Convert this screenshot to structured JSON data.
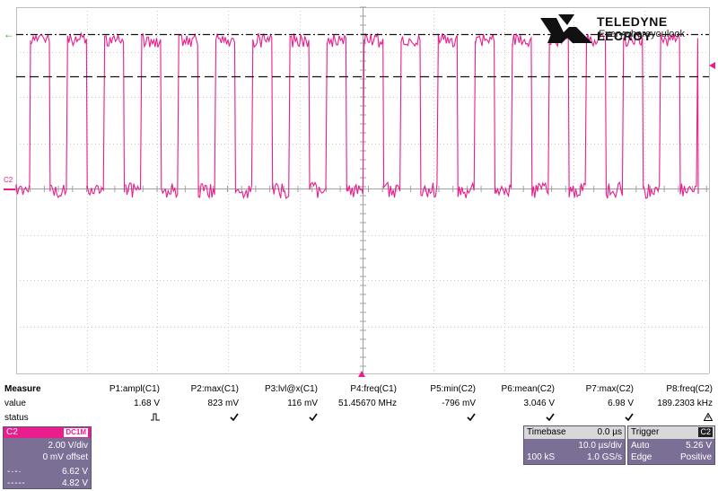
{
  "logo": {
    "brand": "TELEDYNE LECROY",
    "tagline": "Everywhereyoulook"
  },
  "trace": {
    "channel_label": "C2",
    "color": "#e91e8c"
  },
  "measure": {
    "title": "Measure",
    "row_labels": {
      "value": "value",
      "status": "status"
    },
    "params": [
      {
        "header": "P1:ampl(C1)",
        "value": "1.68 V"
      },
      {
        "header": "P2:max(C1)",
        "value": "823 mV"
      },
      {
        "header": "P3:lvl@x(C1)",
        "value": "116 mV"
      },
      {
        "header": "P4:freq(C1)",
        "value": "51.45670 MHz"
      },
      {
        "header": "P5:min(C2)",
        "value": "-796 mV"
      },
      {
        "header": "P6:mean(C2)",
        "value": "3.046 V"
      },
      {
        "header": "P7:max(C2)",
        "value": "6.98 V"
      },
      {
        "header": "P8:freq(C2)",
        "value": "189.2303 kHz"
      }
    ],
    "status_icons": [
      "pulse-icon",
      "check-icon",
      "check-icon",
      "check-icon",
      "check-icon",
      "check-icon",
      "check-icon",
      "warning-icon"
    ]
  },
  "channel_box": {
    "name": "C2",
    "mode": "DC1M",
    "vdiv": "2.00 V/div",
    "offset": "0 mV offset",
    "cursor1_value": "6.62 V",
    "cursor2_value": "4.82 V"
  },
  "timebase": {
    "title": "Timebase",
    "delay": "0.0 µs",
    "tdiv": "10.0 µs/div",
    "samples": "100 kS",
    "rate": "1.0 GS/s"
  },
  "trigger": {
    "title": "Trigger",
    "source": "C2",
    "coupling": "Auto",
    "level": "5.26 V",
    "type": "Edge",
    "slope": "Positive"
  }
}
